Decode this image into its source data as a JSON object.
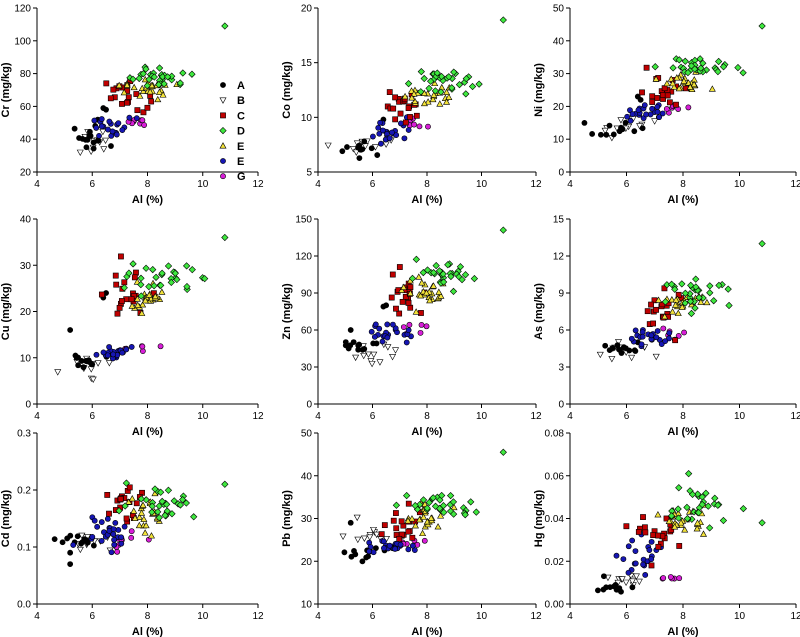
{
  "colors": {
    "A": "#000000",
    "B": "#ffffff",
    "C": "#c00000",
    "D": "#3ee83e",
    "E_yellow": "#f2e23a",
    "E_blue": "#1616b4",
    "G": "#d81ed8"
  },
  "legend": [
    {
      "label": "A",
      "marker": "circle",
      "color": "#000000"
    },
    {
      "label": "B",
      "marker": "triangle-down",
      "color": "#ffffff"
    },
    {
      "label": "C",
      "marker": "square",
      "color": "#c00000"
    },
    {
      "label": "D",
      "marker": "diamond",
      "color": "#3ee83e"
    },
    {
      "label": "E",
      "marker": "triangle-up",
      "color": "#f2e23a"
    },
    {
      "label": "E",
      "marker": "circle",
      "color": "#1616b4"
    },
    {
      "label": "G",
      "marker": "circle",
      "color": "#d81ed8"
    }
  ],
  "chart_data": [
    {
      "type": "scatter",
      "xlabel": "Al (%)",
      "ylabel": "Cr (mg/kg)",
      "xlim": [
        4,
        12
      ],
      "ylim": [
        20,
        120
      ],
      "xticks": [
        4,
        6,
        8,
        10,
        12
      ],
      "yticks": [
        20,
        40,
        60,
        80,
        100,
        120
      ],
      "tick_decimals": 0,
      "groups": {
        "A": {
          "center": [
            5.8,
            40
          ],
          "spread": [
            0.4,
            4
          ],
          "n": 16,
          "outliers": [
            [
              6.4,
              59
            ],
            [
              6.5,
              58
            ]
          ]
        },
        "B": {
          "center": [
            6.2,
            38
          ],
          "spread": [
            0.5,
            4
          ],
          "n": 12
        },
        "C": {
          "center": [
            7.2,
            67
          ],
          "spread": [
            0.4,
            5
          ],
          "n": 20
        },
        "D": {
          "center": [
            8.5,
            78
          ],
          "spread": [
            0.6,
            3
          ],
          "n": 30,
          "outliers": [
            [
              10.8,
              109
            ]
          ]
        },
        "E_yellow": {
          "center": [
            8.0,
            70
          ],
          "spread": [
            0.4,
            3
          ],
          "n": 25
        },
        "E_blue": {
          "center": [
            6.8,
            47
          ],
          "spread": [
            0.4,
            3
          ],
          "n": 22
        },
        "G": {
          "center": [
            7.6,
            50
          ],
          "spread": [
            0.3,
            1.2
          ],
          "n": 8
        }
      }
    },
    {
      "type": "scatter",
      "xlabel": "Al (%)",
      "ylabel": "Co (mg/kg)",
      "xlim": [
        4,
        12
      ],
      "ylim": [
        5,
        20
      ],
      "xticks": [
        4,
        6,
        8,
        10,
        12
      ],
      "yticks": [
        5,
        10,
        15,
        20
      ],
      "tick_decimals": 0,
      "groups": {
        "A": {
          "center": [
            5.6,
            7.1
          ],
          "spread": [
            0.4,
            0.4
          ],
          "n": 12,
          "outliers": [
            [
              6.4,
              9.8
            ]
          ]
        },
        "B": {
          "center": [
            6.0,
            7.5
          ],
          "spread": [
            0.5,
            0.5
          ],
          "n": 12
        },
        "C": {
          "center": [
            7.2,
            11.3
          ],
          "spread": [
            0.4,
            0.9
          ],
          "n": 20
        },
        "D": {
          "center": [
            8.5,
            13.3
          ],
          "spread": [
            0.6,
            0.6
          ],
          "n": 30,
          "outliers": [
            [
              10.8,
              18.9
            ]
          ]
        },
        "E_yellow": {
          "center": [
            8.0,
            12.0
          ],
          "spread": [
            0.4,
            0.6
          ],
          "n": 25
        },
        "E_blue": {
          "center": [
            6.7,
            8.8
          ],
          "spread": [
            0.4,
            0.6
          ],
          "n": 22
        },
        "G": {
          "center": [
            7.6,
            9.5
          ],
          "spread": [
            0.3,
            0.3
          ],
          "n": 6
        }
      }
    },
    {
      "type": "scatter",
      "xlabel": "Al (%)",
      "ylabel": "Ni (mg/kg)",
      "xlim": [
        4,
        12
      ],
      "ylim": [
        0,
        50
      ],
      "xticks": [
        4,
        6,
        8,
        10,
        12
      ],
      "yticks": [
        0,
        10,
        20,
        30,
        40,
        50
      ],
      "tick_decimals": 0,
      "groups": {
        "A": {
          "center": [
            5.6,
            13
          ],
          "spread": [
            0.4,
            1.2
          ],
          "n": 12,
          "outliers": [
            [
              6.4,
              23
            ],
            [
              6.5,
              22
            ]
          ]
        },
        "B": {
          "center": [
            6.0,
            14
          ],
          "spread": [
            0.5,
            1.5
          ],
          "n": 12
        },
        "C": {
          "center": [
            7.2,
            25
          ],
          "spread": [
            0.4,
            2.5
          ],
          "n": 20
        },
        "D": {
          "center": [
            8.5,
            32
          ],
          "spread": [
            0.6,
            1.5
          ],
          "n": 30,
          "outliers": [
            [
              10.8,
              44.5
            ]
          ]
        },
        "E_yellow": {
          "center": [
            8.0,
            27
          ],
          "spread": [
            0.4,
            1.5
          ],
          "n": 25
        },
        "E_blue": {
          "center": [
            6.7,
            18
          ],
          "spread": [
            0.4,
            1.2
          ],
          "n": 22
        },
        "G": {
          "center": [
            7.6,
            19
          ],
          "spread": [
            0.3,
            0.6
          ],
          "n": 6
        }
      }
    },
    {
      "type": "scatter",
      "xlabel": "Al (%)",
      "ylabel": "Cu (mg/kg)",
      "xlim": [
        4,
        12
      ],
      "ylim": [
        0,
        40
      ],
      "xticks": [
        4,
        6,
        8,
        10,
        12
      ],
      "yticks": [
        0,
        10,
        20,
        30,
        40
      ],
      "tick_decimals": 0,
      "groups": {
        "A": {
          "center": [
            5.6,
            9.5
          ],
          "spread": [
            0.4,
            0.6
          ],
          "n": 12,
          "outliers": [
            [
              5.2,
              16
            ],
            [
              6.4,
              23
            ],
            [
              6.5,
              24
            ]
          ]
        },
        "B": {
          "center": [
            6.0,
            8.5
          ],
          "spread": [
            0.5,
            1.2
          ],
          "n": 12
        },
        "C": {
          "center": [
            7.2,
            23
          ],
          "spread": [
            0.4,
            3
          ],
          "n": 20
        },
        "D": {
          "center": [
            8.5,
            27
          ],
          "spread": [
            0.6,
            1.5
          ],
          "n": 30,
          "outliers": [
            [
              10.8,
              36
            ]
          ]
        },
        "E_yellow": {
          "center": [
            8.0,
            23
          ],
          "spread": [
            0.4,
            1.5
          ],
          "n": 25
        },
        "E_blue": {
          "center": [
            6.7,
            11
          ],
          "spread": [
            0.4,
            0.8
          ],
          "n": 22
        },
        "G": {
          "center": [
            7.6,
            12
          ],
          "spread": [
            0.3,
            0.5
          ],
          "n": 6
        }
      }
    },
    {
      "type": "scatter",
      "xlabel": "Al (%)",
      "ylabel": "Zn (mg/kg)",
      "xlim": [
        4,
        12
      ],
      "ylim": [
        0,
        150
      ],
      "xticks": [
        4,
        6,
        8,
        10,
        12
      ],
      "yticks": [
        0,
        30,
        60,
        90,
        120,
        150
      ],
      "tick_decimals": 0,
      "groups": {
        "A": {
          "center": [
            5.6,
            48
          ],
          "spread": [
            0.4,
            3
          ],
          "n": 12,
          "outliers": [
            [
              5.2,
              60
            ],
            [
              6.4,
              79
            ],
            [
              6.5,
              80
            ]
          ]
        },
        "B": {
          "center": [
            6.0,
            40
          ],
          "spread": [
            0.5,
            6
          ],
          "n": 12
        },
        "C": {
          "center": [
            7.3,
            90
          ],
          "spread": [
            0.4,
            10
          ],
          "n": 20
        },
        "D": {
          "center": [
            8.5,
            103
          ],
          "spread": [
            0.6,
            5
          ],
          "n": 30,
          "outliers": [
            [
              10.8,
              141
            ]
          ]
        },
        "E_yellow": {
          "center": [
            8.0,
            90
          ],
          "spread": [
            0.4,
            6
          ],
          "n": 25
        },
        "E_blue": {
          "center": [
            6.7,
            57
          ],
          "spread": [
            0.4,
            4
          ],
          "n": 22
        },
        "G": {
          "center": [
            7.6,
            63
          ],
          "spread": [
            0.3,
            2
          ],
          "n": 6
        }
      }
    },
    {
      "type": "scatter",
      "xlabel": "Al (%)",
      "ylabel": "As (mg/kg)",
      "xlim": [
        4,
        12
      ],
      "ylim": [
        0,
        15
      ],
      "xticks": [
        4,
        6,
        8,
        10,
        12
      ],
      "yticks": [
        0,
        3,
        6,
        9,
        12,
        15
      ],
      "tick_decimals": 0,
      "groups": {
        "A": {
          "center": [
            5.6,
            4.4
          ],
          "spread": [
            0.4,
            0.2
          ],
          "n": 12,
          "outliers": [
            [
              6.4,
              5.0
            ]
          ]
        },
        "B": {
          "center": [
            6.0,
            4.2
          ],
          "spread": [
            0.5,
            0.3
          ],
          "n": 12
        },
        "C": {
          "center": [
            7.3,
            7.5
          ],
          "spread": [
            0.4,
            0.9
          ],
          "n": 20
        },
        "D": {
          "center": [
            8.5,
            9.0
          ],
          "spread": [
            0.6,
            0.5
          ],
          "n": 30,
          "outliers": [
            [
              10.8,
              13
            ]
          ]
        },
        "E_yellow": {
          "center": [
            8.0,
            8.3
          ],
          "spread": [
            0.4,
            0.5
          ],
          "n": 25
        },
        "E_blue": {
          "center": [
            6.7,
            5.4
          ],
          "spread": [
            0.4,
            0.3
          ],
          "n": 22
        },
        "G": {
          "center": [
            7.6,
            5.6
          ],
          "spread": [
            0.3,
            0.2
          ],
          "n": 6
        }
      }
    },
    {
      "type": "scatter",
      "xlabel": "Al (%)",
      "ylabel": "Cd (mg/kg)",
      "xlim": [
        4,
        12
      ],
      "ylim": [
        0,
        0.3
      ],
      "xticks": [
        4,
        6,
        8,
        10,
        12
      ],
      "yticks": [
        0,
        0.1,
        0.2,
        0.3
      ],
      "tick_decimals": 1,
      "groups": {
        "A": {
          "center": [
            5.6,
            0.11
          ],
          "spread": [
            0.4,
            0.005
          ],
          "n": 12,
          "outliers": [
            [
              5.2,
              0.07
            ],
            [
              5.2,
              0.09
            ]
          ]
        },
        "B": {
          "center": [
            6.0,
            0.11
          ],
          "spread": [
            0.5,
            0.01
          ],
          "n": 12
        },
        "C": {
          "center": [
            7.3,
            0.17
          ],
          "spread": [
            0.4,
            0.025
          ],
          "n": 20
        },
        "D": {
          "center": [
            8.5,
            0.18
          ],
          "spread": [
            0.6,
            0.015
          ],
          "n": 30,
          "outliers": [
            [
              10.8,
              0.21
            ]
          ]
        },
        "E_yellow": {
          "center": [
            8.0,
            0.16
          ],
          "spread": [
            0.4,
            0.02
          ],
          "n": 25
        },
        "E_blue": {
          "center": [
            6.5,
            0.13
          ],
          "spread": [
            0.5,
            0.015
          ],
          "n": 26
        },
        "G": {
          "center": [
            7.2,
            0.11
          ],
          "spread": [
            0.4,
            0.01
          ],
          "n": 10
        }
      }
    },
    {
      "type": "scatter",
      "xlabel": "Al (%)",
      "ylabel": "Pb (mg/kg)",
      "xlim": [
        4,
        12
      ],
      "ylim": [
        10,
        50
      ],
      "xticks": [
        4,
        6,
        8,
        10,
        12
      ],
      "yticks": [
        10,
        20,
        30,
        40,
        50
      ],
      "tick_decimals": 0,
      "groups": {
        "A": {
          "center": [
            5.6,
            22
          ],
          "spread": [
            0.4,
            0.6
          ],
          "n": 12,
          "outliers": [
            [
              5.2,
              29
            ]
          ]
        },
        "B": {
          "center": [
            6.0,
            26
          ],
          "spread": [
            0.5,
            1.5
          ],
          "n": 12
        },
        "C": {
          "center": [
            7.2,
            28
          ],
          "spread": [
            0.4,
            2
          ],
          "n": 20
        },
        "D": {
          "center": [
            8.5,
            33
          ],
          "spread": [
            0.6,
            1.5
          ],
          "n": 30,
          "outliers": [
            [
              10.8,
              45.5
            ]
          ]
        },
        "E_yellow": {
          "center": [
            8.0,
            30
          ],
          "spread": [
            0.4,
            1.5
          ],
          "n": 25
        },
        "E_blue": {
          "center": [
            6.7,
            23.5
          ],
          "spread": [
            0.5,
            0.8
          ],
          "n": 26
        },
        "G": {
          "center": [
            7.6,
            24.5
          ],
          "spread": [
            0.3,
            0.5
          ],
          "n": 6
        }
      }
    },
    {
      "type": "scatter",
      "xlabel": "Al (%)",
      "ylabel": "Hg (mg/kg)",
      "xlim": [
        4,
        12
      ],
      "ylim": [
        0,
        0.08
      ],
      "xticks": [
        4,
        6,
        8,
        10,
        12
      ],
      "yticks": [
        0,
        0.02,
        0.04,
        0.06,
        0.08
      ],
      "tick_decimals": 2,
      "groups": {
        "A": {
          "center": [
            5.6,
            0.007
          ],
          "spread": [
            0.4,
            0.0015
          ],
          "n": 12,
          "outliers": [
            [
              5.2,
              0.013
            ]
          ]
        },
        "B": {
          "center": [
            6.0,
            0.011
          ],
          "spread": [
            0.5,
            0.0015
          ],
          "n": 12
        },
        "C": {
          "center": [
            7.2,
            0.032
          ],
          "spread": [
            0.4,
            0.005
          ],
          "n": 20
        },
        "D": {
          "center": [
            8.5,
            0.045
          ],
          "spread": [
            0.6,
            0.005
          ],
          "n": 30,
          "outliers": [
            [
              10.8,
              0.038
            ],
            [
              8.2,
              0.061
            ]
          ]
        },
        "E_yellow": {
          "center": [
            8.0,
            0.04
          ],
          "spread": [
            0.4,
            0.003
          ],
          "n": 25
        },
        "E_blue": {
          "center": [
            6.6,
            0.022
          ],
          "spread": [
            0.4,
            0.004
          ],
          "n": 22
        },
        "G": {
          "center": [
            7.6,
            0.012
          ],
          "spread": [
            0.2,
            0.0003
          ],
          "n": 6
        }
      }
    }
  ]
}
